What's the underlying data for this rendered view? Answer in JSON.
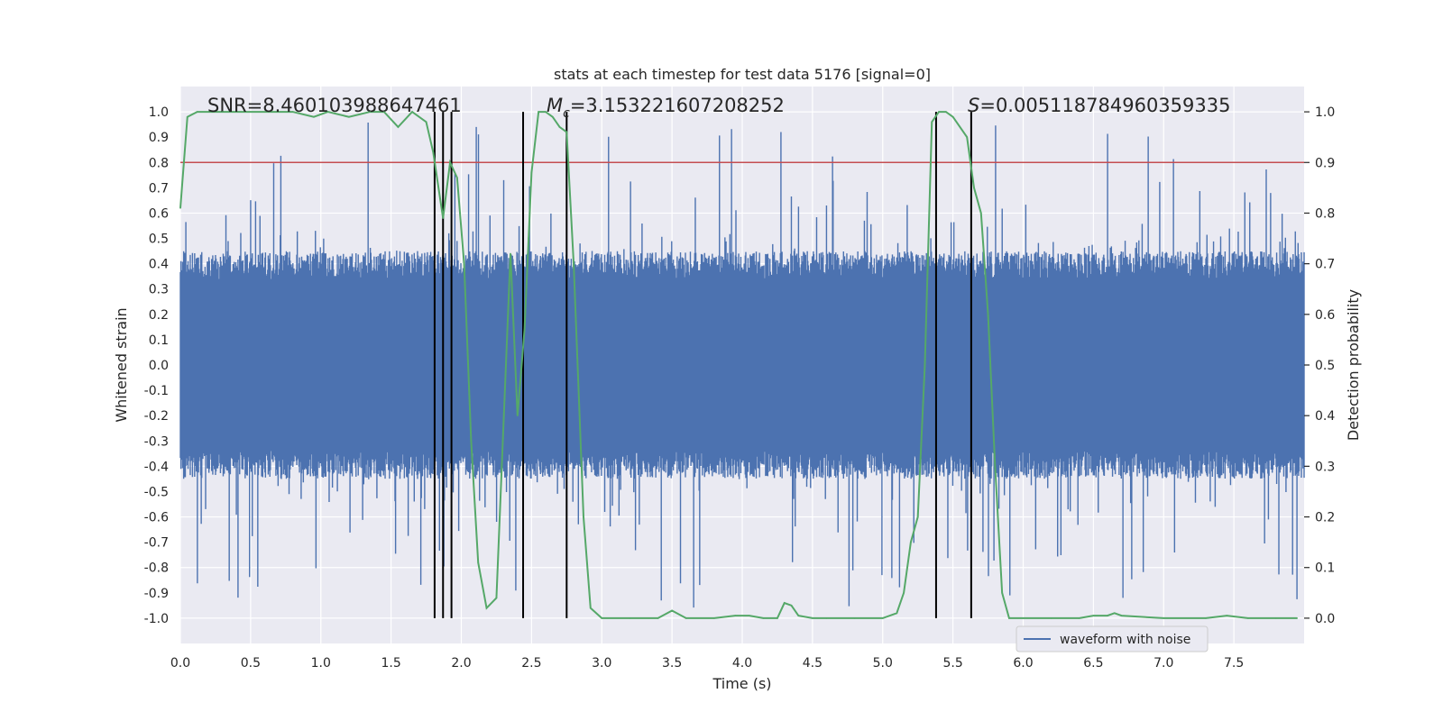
{
  "chart_data": {
    "type": "line",
    "title": "stats at each timestep for test data 5176 [signal=0]",
    "xlabel": "Time (s)",
    "ylabel": "Whitened strain",
    "ylabel_right": "Detection probability",
    "xlim": [
      0.0,
      8.0
    ],
    "ylim": [
      -1.1,
      1.1
    ],
    "ylim_right": [
      -0.05,
      1.05
    ],
    "x_ticks": [
      "0.0",
      "0.5",
      "1.0",
      "1.5",
      "2.0",
      "2.5",
      "3.0",
      "3.5",
      "4.0",
      "4.5",
      "5.0",
      "5.5",
      "6.0",
      "6.5",
      "7.0",
      "7.5"
    ],
    "y_ticks": [
      "-1.0",
      "-0.9",
      "-0.8",
      "-0.7",
      "-0.6",
      "-0.5",
      "-0.4",
      "-0.3",
      "-0.2",
      "-0.1",
      "0.0",
      "0.1",
      "0.2",
      "0.3",
      "0.4",
      "0.5",
      "0.6",
      "0.7",
      "0.8",
      "0.9",
      "1.0"
    ],
    "y_ticks_right": [
      "0.0",
      "0.1",
      "0.2",
      "0.3",
      "0.4",
      "0.5",
      "0.6",
      "0.7",
      "0.8",
      "0.9",
      "1.0"
    ],
    "grid": true,
    "legend": {
      "placement": "lower-center",
      "entries": [
        "waveform with noise"
      ]
    },
    "annotations": {
      "snr": "SNR=8.460103988647461",
      "mc": "=3.153221607208252",
      "mc_symbol": "M",
      "mc_sub": "c",
      "s": "=0.005118784960359335",
      "s_symbol": "S"
    },
    "colors": {
      "waveform": "#4c72b0",
      "probability": "#55a868",
      "threshold": "#c44e52",
      "markers": "#000000"
    },
    "series": [
      {
        "name": "waveform with noise",
        "axis": "left",
        "kind": "noise",
        "seed": 5176,
        "samples": 2048,
        "envelope": [
          0.0,
          8.0
        ],
        "typical_amplitude": 0.45,
        "peak_amplitude": 0.97
      },
      {
        "axis": "right",
        "x": [
          0.0,
          0.05,
          0.12,
          0.3,
          0.5,
          0.8,
          0.95,
          1.05,
          1.2,
          1.35,
          1.45,
          1.55,
          1.65,
          1.75,
          1.8,
          1.87,
          1.92,
          1.97,
          2.02,
          2.07,
          2.12,
          2.18,
          2.25,
          2.3,
          2.35,
          2.4,
          2.45,
          2.5,
          2.55,
          2.6,
          2.65,
          2.7,
          2.75,
          2.8,
          2.87,
          2.92,
          3.0,
          3.2,
          3.4,
          3.5,
          3.6,
          3.8,
          3.95,
          4.05,
          4.15,
          4.25,
          4.3,
          4.35,
          4.4,
          4.5,
          4.6,
          4.8,
          5.0,
          5.1,
          5.15,
          5.2,
          5.25,
          5.3,
          5.35,
          5.4,
          5.45,
          5.5,
          5.6,
          5.65,
          5.7,
          5.75,
          5.8,
          5.85,
          5.9,
          6.0,
          6.2,
          6.4,
          6.5,
          6.6,
          6.65,
          6.7,
          7.0,
          7.3,
          7.45,
          7.6,
          7.8,
          7.95
        ],
        "y": [
          0.81,
          0.99,
          1.0,
          1.0,
          1.0,
          1.0,
          0.99,
          1.0,
          0.99,
          1.0,
          1.0,
          0.97,
          1.0,
          0.98,
          0.92,
          0.79,
          0.9,
          0.87,
          0.7,
          0.35,
          0.11,
          0.02,
          0.04,
          0.38,
          0.72,
          0.4,
          0.57,
          0.88,
          1.0,
          1.0,
          0.99,
          0.97,
          0.96,
          0.7,
          0.2,
          0.02,
          0.0,
          0.0,
          0.0,
          0.015,
          0.0,
          0.0,
          0.005,
          0.005,
          0.0,
          0.0,
          0.03,
          0.025,
          0.005,
          0.0,
          0.0,
          0.0,
          0.0,
          0.01,
          0.05,
          0.15,
          0.2,
          0.5,
          0.98,
          1.0,
          1.0,
          0.99,
          0.95,
          0.85,
          0.8,
          0.6,
          0.3,
          0.05,
          0.0,
          0.0,
          0.0,
          0.0,
          0.005,
          0.005,
          0.01,
          0.005,
          0.0,
          0.0,
          0.005,
          0.0,
          0.0,
          0.0
        ]
      }
    ],
    "threshold": {
      "axis": "left",
      "y": 0.8
    },
    "vertical_markers": [
      1.81,
      1.87,
      1.93,
      2.44,
      2.75,
      5.38,
      5.63
    ]
  }
}
